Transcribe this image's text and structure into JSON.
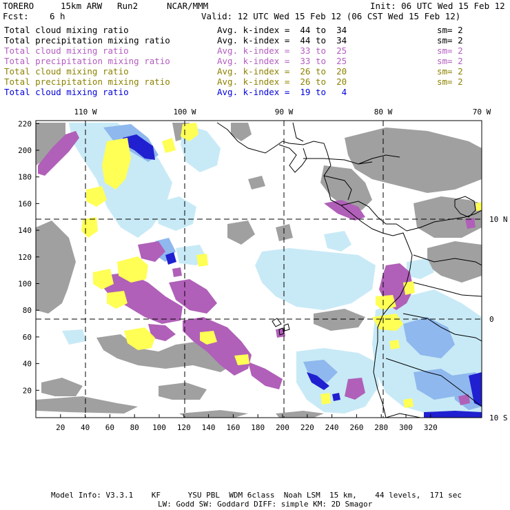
{
  "header": {
    "model": "TORERO",
    "resolution": "15km ARW",
    "run": "Run2",
    "org": "NCAR/MMM",
    "init": "Init: 06 UTC Wed 15 Feb 12",
    "fcst_label": "Fcst:",
    "fcst_value": "6 h",
    "valid": "Valid: 12 UTC Wed 15 Feb 12 (06 CST Wed 15 Feb 12)"
  },
  "fields": [
    {
      "name": "Total cloud mixing ratio",
      "range": "Avg. k-index =  44 to  34",
      "sm": "sm= 2",
      "color": "#000000"
    },
    {
      "name": "Total precipitation mixing ratio",
      "range": "Avg. k-index =  44 to  34",
      "sm": "sm= 2",
      "color": "#000000"
    },
    {
      "name": "Total cloud mixing ratio",
      "range": "Avg. k-index =  33 to  25",
      "sm": "sm= 2",
      "color": "#b35cc1"
    },
    {
      "name": "Total precipitation mixing ratio",
      "range": "Avg. k-index =  33 to  25",
      "sm": "sm= 2",
      "color": "#b35cc1"
    },
    {
      "name": "Total cloud mixing ratio",
      "range": "Avg. k-index =  26 to  20",
      "sm": "sm= 2",
      "color": "#8c8200"
    },
    {
      "name": "Total precipitation mixing ratio",
      "range": "Avg. k-index =  26 to  20",
      "sm": "sm= 2",
      "color": "#8c8200"
    },
    {
      "name": "Total cloud mixing ratio",
      "range": "Avg. k-index =  19 to   4",
      "sm": "",
      "color": "#0000dd"
    }
  ],
  "map": {
    "lon_labels": [
      "110 W",
      "100 W",
      "90 W",
      "80 W",
      "70 W"
    ],
    "lat_labels": [
      "10 N",
      "0",
      "10 S"
    ],
    "y_ticks": [
      "220",
      "200",
      "180",
      "160",
      "140",
      "120",
      "100",
      "80",
      "60",
      "40",
      "20"
    ],
    "x_ticks": [
      "20",
      "40",
      "60",
      "80",
      "100",
      "120",
      "140",
      "160",
      "180",
      "200",
      "220",
      "240",
      "260",
      "280",
      "300",
      "320"
    ],
    "colors": {
      "gray": "#a0a0a0",
      "light_blue": "#c8eaf6",
      "mid_blue": "#8fb8ee",
      "blue": "#2020d0",
      "purple": "#b060b8",
      "yellow": "#ffff55"
    }
  },
  "footer": {
    "line1": "Model Info: V3.3.1    KF      YSU PBL  WDM 6class  Noah LSM  15 km,    44 levels,  171 sec",
    "line2": "LW: Godd SW: Goddard DIFF: simple KM: 2D Smagor"
  }
}
